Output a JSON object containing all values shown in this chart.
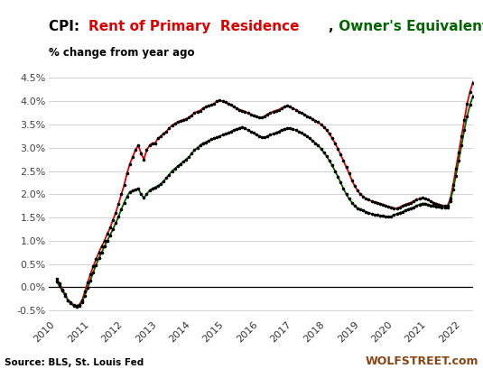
{
  "title_prefix": "CPI: ",
  "title_red": "Rent of Primary  Residence",
  "title_comma": ", ",
  "title_green": "Owner's Equivalent of Rent",
  "subtitle": "% change from year ago",
  "source": "Source: BLS, St. Louis Fed",
  "watermark": "WOLFSTREET.com",
  "ylim": [
    -0.65,
    4.75
  ],
  "yticks": [
    -0.5,
    0.0,
    0.5,
    1.0,
    1.5,
    2.0,
    2.5,
    3.0,
    3.5,
    4.0,
    4.5
  ],
  "yticklabels": [
    "-0.5%",
    "0.0%",
    "0.5%",
    "1.0%",
    "1.5%",
    "2.0%",
    "2.5%",
    "3.0%",
    "3.5%",
    "4.0%",
    "4.5%"
  ],
  "color_rent": "#dd0000",
  "color_oer": "#006600",
  "bg_color": "#ffffff",
  "rent_data": [
    0.18,
    0.08,
    -0.05,
    -0.15,
    -0.28,
    -0.33,
    -0.38,
    -0.4,
    -0.38,
    -0.28,
    -0.1,
    0.1,
    0.28,
    0.45,
    0.6,
    0.75,
    0.88,
    1.0,
    1.15,
    1.28,
    1.45,
    1.6,
    1.8,
    2.0,
    2.2,
    2.45,
    2.65,
    2.8,
    2.95,
    3.05,
    2.88,
    2.75,
    2.95,
    3.05,
    3.1,
    3.1,
    3.2,
    3.25,
    3.3,
    3.35,
    3.42,
    3.48,
    3.52,
    3.55,
    3.58,
    3.6,
    3.62,
    3.65,
    3.7,
    3.75,
    3.78,
    3.8,
    3.85,
    3.88,
    3.9,
    3.92,
    3.95,
    4.0,
    4.02,
    4.0,
    3.98,
    3.95,
    3.92,
    3.88,
    3.85,
    3.82,
    3.8,
    3.78,
    3.75,
    3.72,
    3.7,
    3.68,
    3.65,
    3.65,
    3.68,
    3.72,
    3.75,
    3.78,
    3.8,
    3.82,
    3.85,
    3.88,
    3.9,
    3.88,
    3.85,
    3.82,
    3.78,
    3.75,
    3.72,
    3.68,
    3.65,
    3.62,
    3.58,
    3.55,
    3.5,
    3.45,
    3.38,
    3.3,
    3.2,
    3.1,
    2.98,
    2.85,
    2.72,
    2.58,
    2.45,
    2.3,
    2.18,
    2.08,
    2.0,
    1.95,
    1.9,
    1.88,
    1.85,
    1.83,
    1.82,
    1.8,
    1.78,
    1.75,
    1.73,
    1.72,
    1.7,
    1.7,
    1.72,
    1.75,
    1.78,
    1.8,
    1.82,
    1.85,
    1.88,
    1.9,
    1.92,
    1.9,
    1.88,
    1.85,
    1.82,
    1.8,
    1.78,
    1.76,
    1.75,
    1.75,
    1.9,
    2.2,
    2.55,
    2.9,
    3.25,
    3.6,
    3.95,
    4.2,
    4.4,
    4.55,
    4.45,
    4.35
  ],
  "oer_data": [
    0.12,
    0.02,
    -0.08,
    -0.18,
    -0.28,
    -0.35,
    -0.4,
    -0.42,
    -0.4,
    -0.32,
    -0.18,
    -0.02,
    0.15,
    0.32,
    0.48,
    0.62,
    0.75,
    0.88,
    1.0,
    1.12,
    1.25,
    1.38,
    1.52,
    1.68,
    1.82,
    1.95,
    2.05,
    2.08,
    2.1,
    2.12,
    2.0,
    1.92,
    2.0,
    2.08,
    2.12,
    2.15,
    2.18,
    2.22,
    2.28,
    2.35,
    2.42,
    2.5,
    2.55,
    2.6,
    2.65,
    2.7,
    2.75,
    2.8,
    2.88,
    2.95,
    3.0,
    3.05,
    3.1,
    3.12,
    3.15,
    3.18,
    3.2,
    3.22,
    3.25,
    3.28,
    3.3,
    3.32,
    3.35,
    3.38,
    3.4,
    3.42,
    3.45,
    3.42,
    3.38,
    3.35,
    3.32,
    3.28,
    3.25,
    3.22,
    3.22,
    3.25,
    3.28,
    3.3,
    3.32,
    3.35,
    3.38,
    3.4,
    3.42,
    3.42,
    3.4,
    3.38,
    3.35,
    3.32,
    3.28,
    3.25,
    3.2,
    3.15,
    3.1,
    3.05,
    2.98,
    2.9,
    2.82,
    2.72,
    2.62,
    2.5,
    2.38,
    2.25,
    2.12,
    2.0,
    1.9,
    1.82,
    1.75,
    1.7,
    1.68,
    1.65,
    1.62,
    1.6,
    1.58,
    1.56,
    1.55,
    1.54,
    1.53,
    1.52,
    1.52,
    1.52,
    1.55,
    1.58,
    1.6,
    1.62,
    1.65,
    1.68,
    1.7,
    1.72,
    1.75,
    1.78,
    1.8,
    1.8,
    1.78,
    1.76,
    1.75,
    1.74,
    1.73,
    1.72,
    1.72,
    1.72,
    1.85,
    2.1,
    2.4,
    2.72,
    3.05,
    3.38,
    3.68,
    3.92,
    4.1,
    4.25,
    4.35,
    4.38
  ],
  "start_year": 2010,
  "start_month": 1
}
